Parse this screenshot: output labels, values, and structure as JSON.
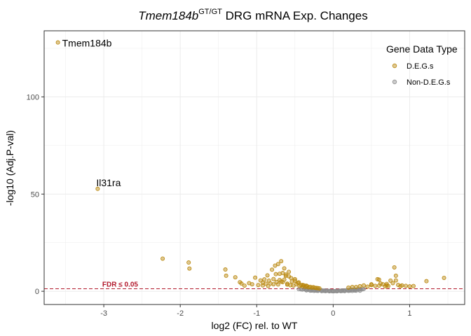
{
  "chart_data": {
    "type": "scatter",
    "title": {
      "italic_part": "Tmem184b",
      "superscript": "GT/GT",
      "rest": " DRG mRNA Exp. Changes"
    },
    "xlabel": "log2 (FC) rel. to WT",
    "ylabel": "-log10 (Adj.P-val)",
    "xlim": [
      -3.78,
      1.72
    ],
    "ylim": [
      -6.8,
      134
    ],
    "x_ticks": [
      -3,
      -2,
      -1,
      0,
      1
    ],
    "x_tick_labels": [
      "-3",
      "-2",
      "-1",
      "0",
      "1"
    ],
    "y_ticks": [
      0,
      50,
      100
    ],
    "y_tick_labels": [
      "0",
      "50",
      "100"
    ],
    "grid": true,
    "legend": {
      "title": "Gene Data Type",
      "position": "top-right",
      "entries": [
        {
          "label": "D.E.G.s",
          "color": "#b8860b"
        },
        {
          "label": "Non-D.E.G.s",
          "color": "#8c8c8c"
        }
      ]
    },
    "threshold": {
      "y": 1.3,
      "label": "FDR ≤ 0.05",
      "color": "#b2182b"
    },
    "annotations": [
      {
        "text": "Tmem184b",
        "x": -3.6,
        "y": 128
      },
      {
        "text": "Il31ra",
        "x": -3.08,
        "y": 53
      }
    ],
    "series": [
      {
        "name": "D.E.G.s",
        "color": "#b8860b",
        "x": [
          -3.6,
          -3.08,
          -2.23,
          -1.89,
          -1.88,
          -1.41,
          -1.4,
          -1.28,
          -1.22,
          -1.2,
          -1.16,
          -1.1,
          -1.06,
          -1.02,
          -0.98,
          -0.95,
          -0.92,
          -0.9,
          -0.88,
          -0.86,
          -0.84,
          -0.82,
          -0.8,
          -0.78,
          -0.76,
          -0.74,
          -0.72,
          -0.7,
          -0.68,
          -0.66,
          -0.64,
          -0.62,
          -0.6,
          -0.58,
          -0.56,
          -0.54,
          -0.52,
          -0.5,
          -0.48,
          -0.46,
          -0.44,
          -0.42,
          -0.4,
          -0.38,
          -0.36,
          -0.34,
          -0.32,
          -0.3,
          -0.28,
          -0.26,
          -0.24,
          -0.22,
          -0.2,
          -0.18,
          -0.72,
          -0.68,
          -0.64,
          -0.58,
          -0.78,
          -0.85,
          -0.92,
          -0.55,
          -0.5,
          -0.45,
          -0.62,
          -0.66,
          -0.75,
          -0.7,
          -0.6,
          -0.4,
          -0.35,
          0.3,
          0.35,
          0.4,
          0.45,
          0.5,
          0.55,
          0.58,
          0.6,
          0.62,
          0.65,
          0.68,
          0.7,
          0.72,
          0.75,
          0.78,
          0.8,
          0.82,
          0.85,
          0.88,
          0.9,
          0.95,
          1.0,
          1.05,
          0.82,
          0.6,
          0.7,
          0.5,
          1.22,
          1.45,
          0.25,
          0.2
        ],
        "y": [
          128,
          52.7,
          16.8,
          14.8,
          11.7,
          11.2,
          8.0,
          7.2,
          4.7,
          4.0,
          2.9,
          4.2,
          3.6,
          7.0,
          3.2,
          5.6,
          4.4,
          6.1,
          3.9,
          8.2,
          5.5,
          4.0,
          11.1,
          6.3,
          13.2,
          4.8,
          14.0,
          9.0,
          15.5,
          4.7,
          11.8,
          8.6,
          3.4,
          7.7,
          3.1,
          5.0,
          2.9,
          6.2,
          3.6,
          4.3,
          2.8,
          3.2,
          2.5,
          3.0,
          2.2,
          2.6,
          2.0,
          2.3,
          1.9,
          2.1,
          1.8,
          1.7,
          1.6,
          1.5,
          3.5,
          5.0,
          6.0,
          10.0,
          3.6,
          2.7,
          3.0,
          6.8,
          5.4,
          4.6,
          7.9,
          9.4,
          8.8,
          5.8,
          3.9,
          3.3,
          2.9,
          2.2,
          2.6,
          3.0,
          2.4,
          3.2,
          2.8,
          6.2,
          6.0,
          4.0,
          3.6,
          2.5,
          3.0,
          2.7,
          5.5,
          4.2,
          12.3,
          5.6,
          3.3,
          2.6,
          3.0,
          2.8,
          2.5,
          2.7,
          8.0,
          2.9,
          3.8,
          3.6,
          5.2,
          6.9,
          2.2,
          1.9
        ]
      },
      {
        "name": "Non-D.E.G.s",
        "color": "#8c8c8c",
        "x": [
          -0.45,
          -0.42,
          -0.4,
          -0.38,
          -0.36,
          -0.34,
          -0.32,
          -0.3,
          -0.28,
          -0.26,
          -0.24,
          -0.22,
          -0.2,
          -0.18,
          -0.16,
          -0.14,
          -0.12,
          -0.1,
          -0.08,
          -0.06,
          -0.04,
          -0.02,
          0.0,
          0.02,
          0.04,
          0.06,
          0.08,
          0.1,
          0.12,
          0.14,
          0.16,
          0.18,
          0.2,
          0.22,
          0.24,
          0.26,
          0.28,
          0.3,
          0.32,
          0.34,
          0.36,
          0.38,
          0.4,
          -0.3,
          -0.25,
          -0.2,
          -0.15,
          -0.1,
          -0.05,
          0.05,
          0.1,
          0.15,
          0.2,
          0.25,
          0.3,
          0.35,
          -0.35,
          -0.28,
          -0.22,
          -0.12,
          0.0,
          0.12,
          0.22,
          0.28
        ],
        "y": [
          1.1,
          1.0,
          0.9,
          1.2,
          0.8,
          1.0,
          0.7,
          0.9,
          0.6,
          0.8,
          0.5,
          0.7,
          0.5,
          0.6,
          0.4,
          0.5,
          0.3,
          0.4,
          0.3,
          0.2,
          0.2,
          0.1,
          0.1,
          0.1,
          0.2,
          0.2,
          0.3,
          0.3,
          0.4,
          0.4,
          0.5,
          0.5,
          0.6,
          0.7,
          0.8,
          0.7,
          0.9,
          0.8,
          1.0,
          0.9,
          1.1,
          1.0,
          1.2,
          0.3,
          0.2,
          0.2,
          0.1,
          0.1,
          0.0,
          0.0,
          0.1,
          0.1,
          0.2,
          0.2,
          0.3,
          0.3,
          0.5,
          0.4,
          0.3,
          0.2,
          0.0,
          0.2,
          0.3,
          0.4
        ]
      }
    ]
  }
}
